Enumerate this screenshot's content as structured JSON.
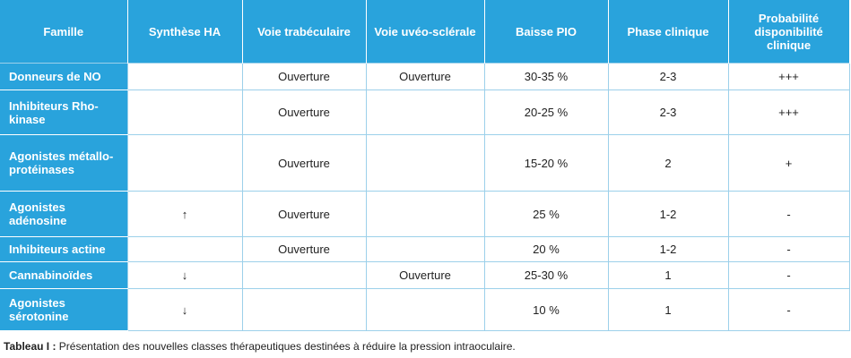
{
  "table": {
    "header": [
      "Famille",
      "Synthèse HA",
      "Voie trabéculaire",
      "Voie uvéo-sclérale",
      "Baisse PIO",
      "Phase clinique",
      "Probabilité disponibilité clinique"
    ],
    "rows": [
      [
        "Donneurs de NO",
        null,
        "Ouverture",
        "Ouverture",
        "30-35 %",
        "2-3",
        "+++"
      ],
      [
        "Inhibiteurs Rho-kinase",
        null,
        "Ouverture",
        null,
        "20-25 %",
        "2-3",
        "+++"
      ],
      [
        "Agonistes métallo-protéinases",
        null,
        "Ouverture",
        null,
        "15-20 %",
        "2",
        "+"
      ],
      [
        "Agonistes adénosine",
        "↑",
        "Ouverture",
        null,
        "25 %",
        "1-2",
        "-"
      ],
      [
        "Inhibiteurs actine",
        null,
        "Ouverture",
        null,
        "20 %",
        "1-2",
        "-"
      ],
      [
        "Cannabinoïdes",
        "↓",
        null,
        "Ouverture",
        "25-30 %",
        "1",
        "-"
      ],
      [
        "Agonistes sérotonine",
        "↓",
        null,
        null,
        "10 %",
        "1",
        "-"
      ]
    ]
  },
  "caption": {
    "label": "Tableau I :",
    "text": "Présentation des nouvelles classes thérapeutiques destinées à réduire la pression intraoculaire."
  }
}
